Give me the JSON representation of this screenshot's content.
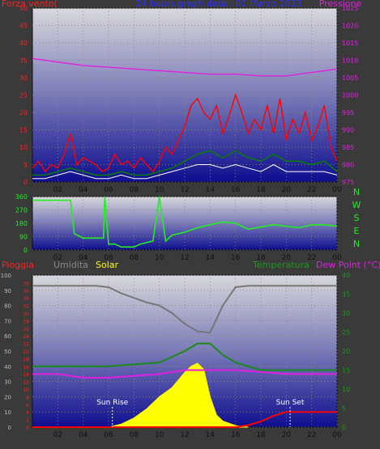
{
  "colors": {
    "background": "#3a3a3a",
    "plot_top": "#d8d8dc",
    "plot_bottom": "#0e0e90",
    "wind": "#ff0000",
    "gust_avg": "#0a7a0a",
    "pressure": "#e020e0",
    "direction": "#22ee22",
    "humidity": "#777777",
    "solar": "#ffff00",
    "temperature": "#1a8a1a",
    "dewpoint": "#e020e0",
    "rain": "#ff0000",
    "grid": "#888888"
  },
  "chart_data": [
    {
      "type": "line",
      "title": "24 hours graph data : 01 Marzo 2023",
      "left_axis_label": "Forza vento(",
      "right_axis_label": "Pressione",
      "x_ticks": [
        "02",
        "04",
        "06",
        "08",
        "10",
        "12",
        "14",
        "16",
        "18",
        "20",
        "22",
        "00"
      ],
      "y_left_ticks": [
        0,
        5,
        10,
        15,
        20,
        25,
        30,
        35,
        40,
        45,
        50
      ],
      "y_left_range": [
        0,
        50
      ],
      "y_right_ticks": [
        975,
        980,
        985,
        990,
        995,
        1000,
        1005,
        1010,
        1015,
        1020,
        1025
      ],
      "y_right_range": [
        975,
        1025
      ],
      "grid": true,
      "series": [
        {
          "key": "wind_gust",
          "x": [
            0,
            0.5,
            1,
            1.5,
            2,
            2.5,
            3,
            3.5,
            4,
            4.5,
            5,
            5.5,
            6,
            6.5,
            7,
            7.5,
            8,
            8.5,
            9,
            9.5,
            10,
            10.5,
            11,
            11.5,
            12,
            12.5,
            13,
            13.5,
            14,
            14.5,
            15,
            15.5,
            16,
            16.5,
            17,
            17.5,
            18,
            18.5,
            19,
            19.5,
            20,
            20.5,
            21,
            21.5,
            22,
            22.5,
            23,
            23.5,
            24
          ],
          "y": [
            4,
            6,
            3,
            5,
            4,
            8,
            14,
            5,
            7,
            6,
            5,
            3,
            4,
            8,
            5,
            6,
            4,
            7,
            5,
            3,
            6,
            10,
            8,
            12,
            16,
            22,
            24,
            20,
            18,
            22,
            14,
            19,
            25,
            20,
            14,
            18,
            15,
            22,
            14,
            24,
            12,
            18,
            14,
            20,
            12,
            16,
            22,
            10,
            6
          ]
        },
        {
          "key": "wind_avg",
          "x": [
            0,
            1,
            2,
            3,
            4,
            5,
            6,
            7,
            8,
            9,
            10,
            11,
            12,
            13,
            14,
            15,
            16,
            17,
            18,
            19,
            20,
            21,
            22,
            23,
            24
          ],
          "y": [
            2,
            2,
            3,
            4,
            3,
            2,
            2,
            3,
            2,
            2,
            3,
            4,
            6,
            8,
            9,
            7,
            9,
            7,
            6,
            8,
            6,
            6,
            5,
            6,
            3
          ]
        },
        {
          "key": "wind_min",
          "x": [
            0,
            1,
            2,
            3,
            4,
            5,
            6,
            7,
            8,
            9,
            10,
            11,
            12,
            13,
            14,
            15,
            16,
            17,
            18,
            19,
            20,
            21,
            22,
            23,
            24
          ],
          "y": [
            1,
            1,
            2,
            3,
            2,
            1,
            1,
            2,
            1,
            1,
            2,
            3,
            4,
            5,
            5,
            4,
            5,
            4,
            3,
            5,
            3,
            3,
            3,
            3,
            2
          ]
        },
        {
          "key": "pressure",
          "x": [
            0,
            2,
            4,
            6,
            8,
            10,
            12,
            14,
            16,
            18,
            20,
            22,
            24
          ],
          "y": [
            1010.5,
            1009.5,
            1008.5,
            1008,
            1007.5,
            1007,
            1006.5,
            1006,
            1006,
            1005.5,
            1005.5,
            1006.5,
            1007.5
          ]
        }
      ]
    },
    {
      "type": "line",
      "right_label_letters": [
        "N",
        "W",
        "S",
        "E",
        "N"
      ],
      "x_ticks": [
        "02",
        "04",
        "06",
        "08",
        "10",
        "12",
        "14",
        "16",
        "18",
        "20",
        "22",
        "00"
      ],
      "y_ticks": [
        0,
        90,
        180,
        270,
        360
      ],
      "y_range": [
        0,
        360
      ],
      "grid": true,
      "series": [
        {
          "key": "direction",
          "x": [
            0,
            1,
            2,
            3,
            3.3,
            4,
            5,
            5.6,
            5.7,
            6,
            6.5,
            7,
            8,
            8.5,
            9,
            9.5,
            10,
            10.5,
            11,
            12,
            13,
            14,
            15,
            16,
            17,
            18,
            19,
            20,
            21,
            22,
            23,
            24
          ],
          "y": [
            335,
            335,
            335,
            335,
            110,
            80,
            80,
            80,
            360,
            40,
            40,
            20,
            20,
            40,
            50,
            60,
            360,
            60,
            100,
            120,
            150,
            170,
            190,
            180,
            140,
            155,
            170,
            160,
            150,
            170,
            170,
            160
          ]
        }
      ]
    },
    {
      "type": "line",
      "labels": {
        "rain": "Pioggia",
        "humidity": "Umidita",
        "solar": "Solar",
        "temperature": "Temperatura",
        "dewpoint": "Dew Point (°C)"
      },
      "annotations": [
        "Sun Rise",
        "Sun Set"
      ],
      "x_ticks": [
        "02",
        "04",
        "06",
        "08",
        "10",
        "12",
        "14",
        "16",
        "18",
        "20",
        "22",
        "00"
      ],
      "y_left_ticks": [
        0,
        10,
        20,
        30,
        40,
        50,
        60,
        70,
        80,
        90,
        100
      ],
      "y_left_range": [
        0,
        100
      ],
      "y_inner_ticks": [
        0,
        2,
        4,
        6,
        8,
        10,
        12,
        14,
        16,
        18,
        20,
        22,
        24,
        26,
        28,
        30,
        32,
        34,
        36,
        38
      ],
      "y_right_ticks": [
        0,
        5,
        10,
        15,
        20,
        25,
        30,
        35,
        40
      ],
      "y_right_range": [
        0,
        40
      ],
      "grid": true,
      "series": [
        {
          "key": "humidity",
          "x": [
            0,
            1,
            2,
            3,
            4,
            5,
            6,
            7,
            8,
            9,
            10,
            11,
            12,
            13,
            14,
            15,
            16,
            17,
            18,
            19,
            20,
            21,
            22,
            23,
            24
          ],
          "y": [
            93,
            93,
            93,
            93,
            93,
            93,
            92,
            88,
            85,
            82,
            80,
            75,
            68,
            63,
            62,
            80,
            92,
            93,
            93,
            93,
            93,
            93,
            93,
            93,
            93
          ]
        },
        {
          "key": "temperature",
          "x": [
            0,
            2,
            4,
            6,
            8,
            10,
            12,
            13,
            14,
            15,
            16,
            18,
            20,
            22,
            24
          ],
          "y": [
            16,
            16,
            16,
            16,
            16.5,
            17,
            20,
            22,
            22,
            19,
            17,
            15,
            15,
            15,
            15
          ]
        },
        {
          "key": "dewpoint",
          "x": [
            0,
            2,
            4,
            6,
            8,
            10,
            12,
            14,
            16,
            18,
            20,
            22,
            24
          ],
          "y": [
            14,
            14,
            13,
            13,
            13.5,
            14,
            15,
            15,
            15,
            14.5,
            14,
            14,
            14
          ]
        },
        {
          "key": "solar",
          "x": [
            6,
            7,
            8,
            9,
            10,
            11,
            12,
            12.5,
            13,
            13.5,
            14,
            14.5,
            15,
            16,
            17
          ],
          "y": [
            0,
            2,
            6,
            12,
            20,
            26,
            36,
            40,
            42,
            38,
            20,
            8,
            4,
            1,
            0
          ]
        },
        {
          "key": "rain",
          "x": [
            0,
            6,
            10,
            14,
            16,
            17,
            18,
            19,
            20,
            21,
            22,
            24
          ],
          "y": [
            0,
            0,
            0,
            0,
            0,
            0.5,
            1.5,
            3,
            4,
            4,
            4,
            4
          ]
        }
      ],
      "sun_rise_hour": 6.3,
      "sun_set_hour": 20.3
    }
  ]
}
